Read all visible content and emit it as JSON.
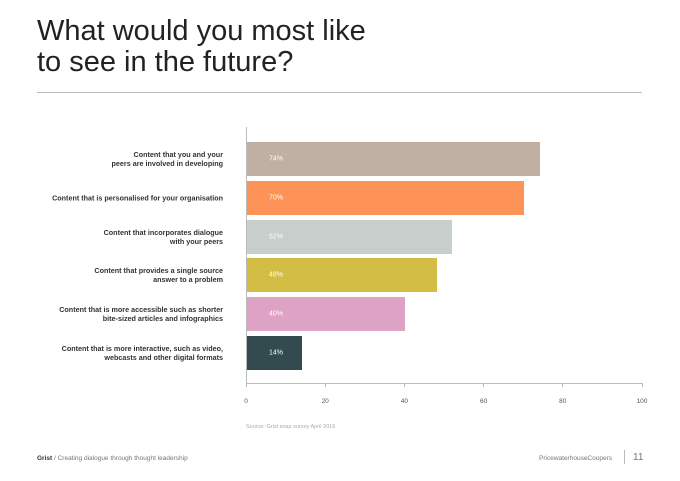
{
  "chart_data": {
    "type": "bar",
    "orientation": "horizontal",
    "title": "What would you most like\nto see in the future?",
    "categories": [
      "Content that you and your\npeers are involved in developing",
      "Content that is personalised for your organisation",
      "Content that incorporates dialogue\nwith your peers",
      "Content that provides a single source\nanswer to a problem",
      "Content that is more accessible such as shorter\nbite-sized articles and infographics",
      "Content that is more interactive, such as video,\nwebcasts and other digital formats"
    ],
    "values": [
      74,
      70,
      52,
      48,
      40,
      14
    ],
    "value_labels": [
      "74%",
      "70%",
      "52%",
      "48%",
      "40%",
      "14%"
    ],
    "colors": [
      "#bfb0a3",
      "#fd9356",
      "#c7cecb",
      "#d4bd44",
      "#dea2c4",
      "#334a4f"
    ],
    "xlim": [
      0,
      100
    ],
    "xticks": [
      0,
      20,
      40,
      60,
      80,
      100
    ],
    "source": "Source: Grist snap survey April 2016"
  },
  "footer": {
    "brand": "Grist",
    "tagline": "/ Creating dialogue through thought leadership",
    "company": "PricewaterhouseCoopers",
    "page": 11
  }
}
